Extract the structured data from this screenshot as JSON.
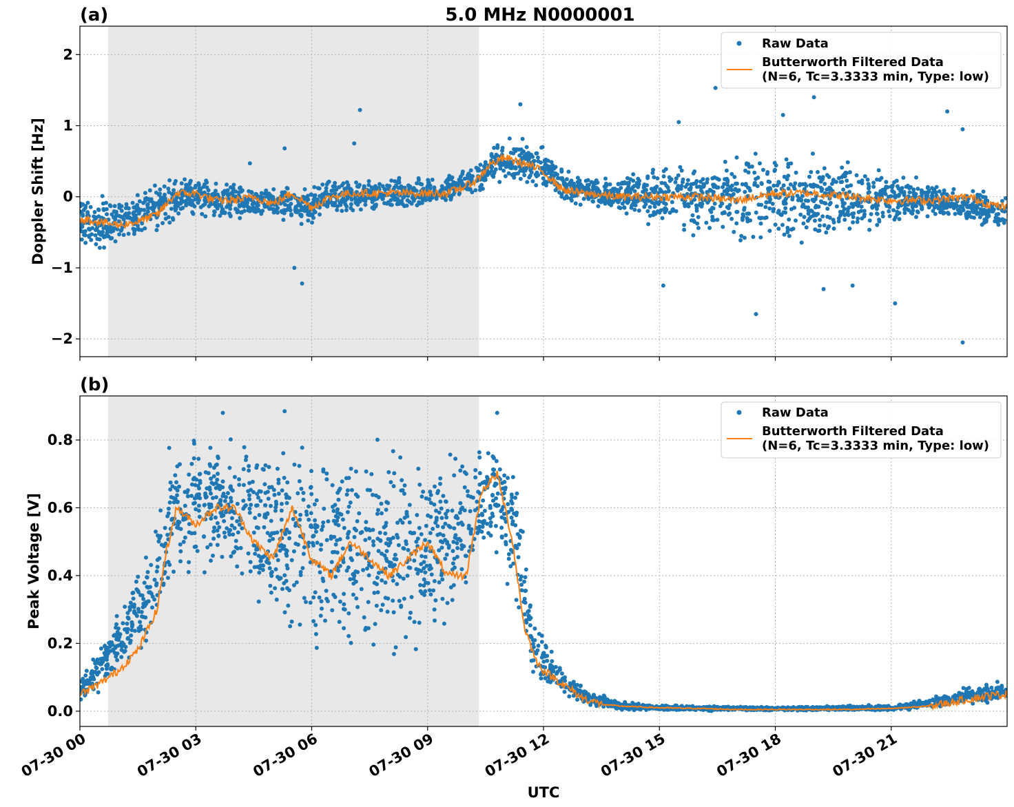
{
  "chart_data": [
    {
      "type": "scatter",
      "panel_label": "(a)",
      "title": "5.0 MHz N0000001",
      "ylabel": "Doppler Shift [Hz]",
      "xlabel": "",
      "xlim": [
        0,
        24
      ],
      "ylim": [
        -2.25,
        2.4
      ],
      "yticks": [
        -2,
        -1,
        0,
        1,
        2
      ],
      "ytick_labels": [
        "−2",
        "−1",
        "0",
        "1",
        "2"
      ],
      "grid": true,
      "legend_position": "top-right",
      "shaded_interval": [
        0.73,
        10.33
      ],
      "series": [
        {
          "name": "Raw Data",
          "style": "dots",
          "color": "#1f77b4",
          "envelope": {
            "x": [
              0,
              0.7,
              1.5,
              2.5,
              3.0,
              3.5,
              4.5,
              5.5,
              6.0,
              6.5,
              7.5,
              8.5,
              9.5,
              10.3,
              10.8,
              11.5,
              12.0,
              12.5,
              13.5,
              15.0,
              16.0,
              17.0,
              18.0,
              19.0,
              20.0,
              21.0,
              22.0,
              23.0,
              24.0
            ],
            "low": [
              -0.8,
              -0.9,
              -0.75,
              -0.4,
              -0.3,
              -0.45,
              -0.35,
              -0.4,
              -0.5,
              -0.3,
              -0.25,
              -0.25,
              -0.15,
              0.0,
              0.15,
              0.05,
              0.0,
              -0.1,
              -0.2,
              -0.5,
              -0.65,
              -0.8,
              -0.8,
              -0.8,
              -0.6,
              -0.45,
              -0.35,
              -0.45,
              -0.55
            ],
            "high": [
              0.15,
              0.1,
              0.2,
              0.35,
              0.4,
              0.3,
              0.2,
              0.2,
              0.2,
              0.3,
              0.3,
              0.3,
              0.35,
              0.5,
              0.85,
              0.9,
              0.75,
              0.4,
              0.3,
              0.5,
              0.65,
              0.75,
              0.8,
              0.8,
              0.6,
              0.4,
              0.3,
              0.15,
              0.1
            ]
          },
          "outliers": [
            [
              7.25,
              1.22
            ],
            [
              7.1,
              0.75
            ],
            [
              5.75,
              -1.22
            ],
            [
              5.55,
              -1.0
            ],
            [
              5.3,
              0.68
            ],
            [
              4.4,
              0.47
            ],
            [
              11.4,
              1.3
            ],
            [
              15.1,
              -1.25
            ],
            [
              15.5,
              1.05
            ],
            [
              16.45,
              1.53
            ],
            [
              17.5,
              -1.65
            ],
            [
              18.2,
              1.15
            ],
            [
              19.0,
              1.4
            ],
            [
              19.25,
              -1.3
            ],
            [
              20.0,
              -1.25
            ],
            [
              21.1,
              -1.5
            ],
            [
              22.45,
              1.2
            ],
            [
              22.85,
              -2.05
            ],
            [
              22.85,
              0.95
            ]
          ]
        },
        {
          "name": "Butterworth Filtered Data\n(N=6, Tc=3.3333 min, Type: low)",
          "style": "line",
          "color": "#ff7f0e",
          "x": [
            0,
            0.5,
            1.0,
            1.5,
            2.0,
            2.5,
            3.0,
            3.5,
            4.0,
            4.5,
            5.0,
            5.5,
            6.0,
            6.5,
            7.0,
            7.5,
            8.0,
            8.5,
            9.0,
            9.5,
            10.0,
            10.3,
            10.6,
            11.0,
            11.3,
            11.6,
            12.0,
            12.5,
            13.0,
            14.0,
            15.0,
            16.0,
            17.0,
            18.0,
            19.0,
            20.0,
            21.0,
            22.0,
            23.0,
            23.5,
            24.0
          ],
          "y": [
            -0.3,
            -0.35,
            -0.4,
            -0.35,
            -0.25,
            0.05,
            0.05,
            -0.05,
            -0.05,
            0.0,
            -0.1,
            0.05,
            -0.15,
            0.0,
            0.05,
            0.05,
            0.05,
            0.05,
            0.05,
            0.05,
            0.15,
            0.25,
            0.45,
            0.55,
            0.5,
            0.45,
            0.35,
            0.1,
            0.05,
            0.0,
            0.0,
            0.0,
            -0.05,
            0.05,
            0.05,
            0.0,
            -0.05,
            -0.05,
            0.0,
            -0.1,
            -0.15
          ]
        }
      ]
    },
    {
      "type": "scatter",
      "panel_label": "(b)",
      "title": "",
      "ylabel": "Peak Voltage [V]",
      "xlabel": "UTC",
      "xlim": [
        0,
        24
      ],
      "ylim": [
        -0.045,
        0.93
      ],
      "yticks": [
        0.0,
        0.2,
        0.4,
        0.6,
        0.8
      ],
      "ytick_labels": [
        "0.0",
        "0.2",
        "0.4",
        "0.6",
        "0.8"
      ],
      "xticks": [
        0,
        3,
        6,
        9,
        12,
        15,
        18,
        21
      ],
      "xtick_labels": [
        "07-30 00",
        "07-30 03",
        "07-30 06",
        "07-30 09",
        "07-30 12",
        "07-30 15",
        "07-30 18",
        "07-30 21"
      ],
      "grid": true,
      "legend_position": "top-right",
      "shaded_interval": [
        0.73,
        10.33
      ],
      "series": [
        {
          "name": "Raw Data",
          "style": "dots",
          "color": "#1f77b4",
          "envelope": {
            "x": [
              0,
              0.5,
              1.0,
              1.5,
              2.0,
              2.3,
              3.0,
              4.0,
              4.5,
              5.5,
              6.0,
              6.5,
              7.5,
              8.5,
              9.5,
              10.3,
              10.8,
              11.3,
              11.7,
              12.0,
              12.5,
              13.0,
              13.5,
              14.0,
              15.0,
              17.0,
              19.0,
              21.0,
              22.0,
              23.0,
              24.0
            ],
            "low": [
              0.02,
              0.05,
              0.1,
              0.15,
              0.2,
              0.3,
              0.35,
              0.35,
              0.25,
              0.15,
              0.1,
              0.1,
              0.1,
              0.1,
              0.15,
              0.35,
              0.45,
              0.25,
              0.1,
              0.06,
              0.03,
              0.015,
              0.005,
              0.002,
              0.0,
              0.0,
              0.0,
              0.0,
              0.005,
              0.01,
              0.02
            ],
            "high": [
              0.1,
              0.2,
              0.3,
              0.45,
              0.6,
              0.85,
              0.87,
              0.87,
              0.87,
              0.87,
              0.87,
              0.87,
              0.85,
              0.85,
              0.85,
              0.88,
              0.87,
              0.75,
              0.35,
              0.22,
              0.15,
              0.08,
              0.05,
              0.03,
              0.02,
              0.015,
              0.015,
              0.02,
              0.04,
              0.08,
              0.1
            ]
          },
          "outliers": [
            [
              10.8,
              0.88
            ],
            [
              3.7,
              0.88
            ],
            [
              5.3,
              0.885
            ]
          ]
        },
        {
          "name": "Butterworth Filtered Data\n(N=6, Tc=3.3333 min, Type: low)",
          "style": "line",
          "color": "#ff7f0e",
          "x": [
            0,
            0.5,
            1.0,
            1.5,
            2.0,
            2.2,
            2.5,
            3.0,
            3.5,
            4.0,
            4.5,
            5.0,
            5.5,
            6.0,
            6.5,
            7.0,
            7.5,
            8.0,
            8.5,
            9.0,
            9.5,
            10.0,
            10.4,
            10.8,
            11.2,
            11.5,
            11.8,
            12.0,
            12.5,
            13.0,
            13.5,
            14.0,
            15.0,
            16.0,
            17.0,
            18.0,
            19.0,
            20.0,
            21.0,
            22.0,
            23.0,
            23.5,
            24.0
          ],
          "y": [
            0.05,
            0.08,
            0.12,
            0.18,
            0.3,
            0.45,
            0.6,
            0.55,
            0.6,
            0.6,
            0.5,
            0.45,
            0.6,
            0.45,
            0.4,
            0.5,
            0.45,
            0.4,
            0.45,
            0.5,
            0.4,
            0.4,
            0.65,
            0.7,
            0.5,
            0.25,
            0.15,
            0.12,
            0.08,
            0.04,
            0.02,
            0.015,
            0.01,
            0.008,
            0.005,
            0.005,
            0.005,
            0.005,
            0.008,
            0.015,
            0.035,
            0.045,
            0.05
          ]
        }
      ]
    }
  ]
}
